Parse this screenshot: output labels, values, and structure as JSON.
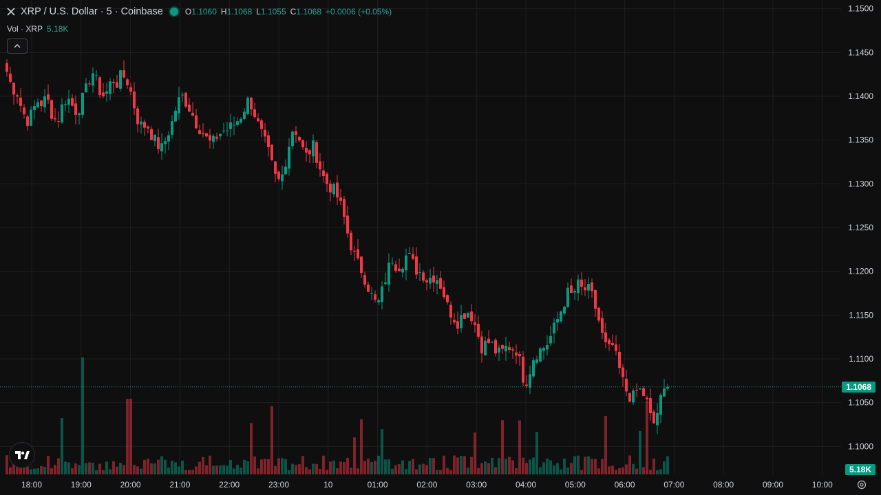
{
  "header": {
    "symbol_title": "XRP / U.S. Dollar · 5 · Coinbase",
    "o_label": "O",
    "o_value": "1.1060",
    "h_label": "H",
    "h_value": "1.1068",
    "l_label": "L",
    "l_value": "1.1055",
    "c_label": "C",
    "c_value": "1.1068",
    "change": "+0.0006 (+0.05%)"
  },
  "volume_legend": {
    "label": "Vol · XRP",
    "value": "5.18K"
  },
  "price_axis": {
    "ticks": [
      "1.1500",
      "1.1450",
      "1.1400",
      "1.1350",
      "1.1300",
      "1.1250",
      "1.1200",
      "1.1150",
      "1.1100",
      "1.1050",
      "1.1000"
    ],
    "last_price_label": "1.1068",
    "volume_label": "5.18K"
  },
  "time_axis": {
    "ticks": [
      "18:00",
      "19:00",
      "20:00",
      "21:00",
      "22:00",
      "23:00",
      "10",
      "01:00",
      "02:00",
      "03:00",
      "04:00",
      "05:00",
      "06:00",
      "07:00",
      "08:00",
      "09:00",
      "10:00"
    ]
  },
  "colors": {
    "up": "#089981",
    "down": "#f23645",
    "background": "#0f0f0f",
    "grid": "#1e1e1e",
    "text": "#d1d4dc"
  },
  "icons": {
    "logo": "xrp-icon",
    "collapse": "chevron-up-icon",
    "brand": "tradingview-icon",
    "settings": "gear-icon"
  },
  "chart_data": {
    "type": "candlestick",
    "title": "XRP / U.S. Dollar · 5 · Coinbase",
    "x_axis": "time (5-minute bars)",
    "y_axis": "price (USD)",
    "ylim": [
      1.0968,
      1.151
    ],
    "last_close": 1.1068,
    "path_close": [
      1.1428,
      1.141,
      1.1405,
      1.1385,
      1.1372,
      1.138,
      1.1395,
      1.1392,
      1.1398,
      1.138,
      1.137,
      1.1388,
      1.14,
      1.139,
      1.1382,
      1.1395,
      1.141,
      1.143,
      1.1415,
      1.14,
      1.1405,
      1.142,
      1.1415,
      1.1425,
      1.1418,
      1.14,
      1.1375,
      1.1365,
      1.1368,
      1.1355,
      1.1345,
      1.134,
      1.1355,
      1.137,
      1.1392,
      1.14,
      1.1392,
      1.138,
      1.1368,
      1.136,
      1.135,
      1.1345,
      1.1355,
      1.136,
      1.1362,
      1.1366,
      1.1372,
      1.138,
      1.1395,
      1.139,
      1.137,
      1.1355,
      1.134,
      1.132,
      1.13,
      1.131,
      1.1335,
      1.1362,
      1.136,
      1.134,
      1.133,
      1.1345,
      1.133,
      1.131,
      1.13,
      1.1295,
      1.1285,
      1.127,
      1.1245,
      1.1225,
      1.121,
      1.12,
      1.1185,
      1.117,
      1.116,
      1.1178,
      1.12,
      1.1215,
      1.1205,
      1.121,
      1.122,
      1.121,
      1.12,
      1.1198,
      1.119,
      1.1195,
      1.1192,
      1.118,
      1.116,
      1.115,
      1.1142,
      1.115,
      1.1155,
      1.1148,
      1.113,
      1.1112,
      1.112,
      1.1115,
      1.1105,
      1.1108,
      1.1115,
      1.1112,
      1.111,
      1.108,
      1.1075,
      1.11,
      1.1108,
      1.1112,
      1.1118,
      1.113,
      1.1145,
      1.116,
      1.1175,
      1.1172,
      1.1185,
      1.1178,
      1.118,
      1.117,
      1.115,
      1.1125,
      1.1108,
      1.1115,
      1.1095,
      1.1075,
      1.106,
      1.1055,
      1.1065,
      1.1062,
      1.1048,
      1.1022,
      1.104,
      1.106,
      1.1068
    ],
    "volume_scale_max": 5.18,
    "volume_label": "Vol · XRP"
  }
}
